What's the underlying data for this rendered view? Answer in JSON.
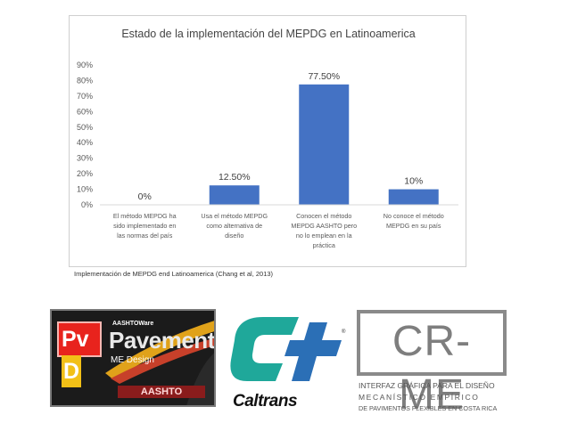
{
  "chart_data": {
    "type": "bar",
    "title": "Estado de la implementación del MEPDG en Latinoamerica",
    "categories": [
      [
        "El método MEPDG  ha",
        "sido implementado en",
        "las normas del país"
      ],
      [
        "Usa el método MEPDG",
        "como alternativa de",
        "diseño"
      ],
      [
        "Conocen el método",
        "MEPDG AASHTO pero",
        "no lo emplean en la",
        "práctica"
      ],
      [
        "No conoce el método",
        "MEPDG en su país"
      ]
    ],
    "values": [
      0,
      12.5,
      77.5,
      10
    ],
    "data_labels": [
      "0%",
      "12.50%",
      "77.50%",
      "10%"
    ],
    "yticks": [
      "0%",
      "10%",
      "20%",
      "30%",
      "40%",
      "50%",
      "60%",
      "70%",
      "80%",
      "90%"
    ],
    "ylim": [
      0,
      90
    ],
    "bar_color": "#4472c4",
    "grid": false,
    "legend": "none"
  },
  "caption": "Implementación de MEPDG end Latinoamerica (Chang et al, 2013)",
  "logos": {
    "pvd": {
      "badge_p": "Pv",
      "badge_d": "D",
      "aashtoware": "AASHTOWare",
      "pavement": "Pavement",
      "me_design": "ME Design",
      "aashto": "AASHTO"
    },
    "caltrans": {
      "wordmark": "Caltrans",
      "colors": {
        "teal": "#1fa89a",
        "blue": "#2b6fb6"
      }
    },
    "crme": {
      "title": "CR-ME",
      "line1": "INTERFAZ GRÁFICA PARA EL DISEÑO",
      "line2": "MECANÍSTICO EMPÍRICO",
      "line3": "DE PAVIMENTOS FLEXIBLES EN COSTA RICA"
    }
  }
}
